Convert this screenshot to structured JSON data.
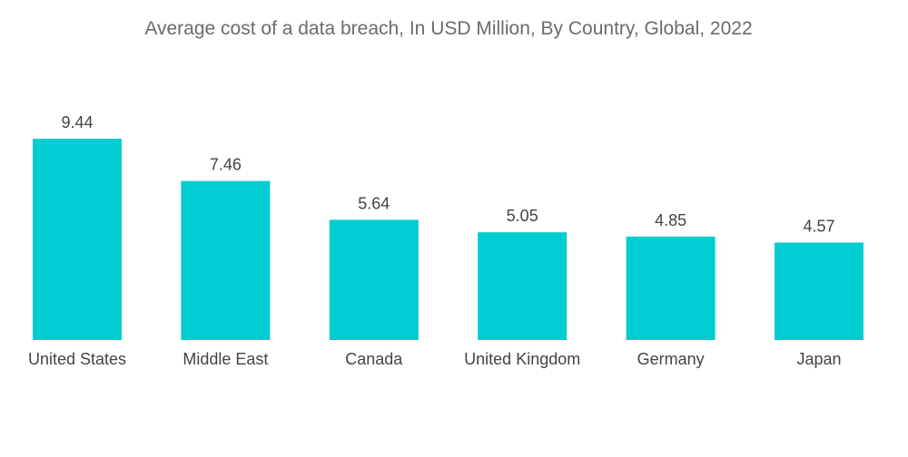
{
  "chart_data": {
    "type": "bar",
    "title": "Average cost of a data breach, In USD Million, By Country, Global, 2022",
    "categories": [
      "United States",
      "Middle East",
      "Canada",
      "United Kingdom",
      "Germany",
      "Japan"
    ],
    "values": [
      9.44,
      7.46,
      5.64,
      5.05,
      4.85,
      4.57
    ],
    "value_labels": [
      "9.44",
      "7.46",
      "5.64",
      "5.05",
      "4.85",
      "4.57"
    ],
    "xlabel": "",
    "ylabel": "",
    "ylim": [
      0,
      9.44
    ],
    "grid": false,
    "legend": "none",
    "bar_color": "#00cdd1"
  }
}
